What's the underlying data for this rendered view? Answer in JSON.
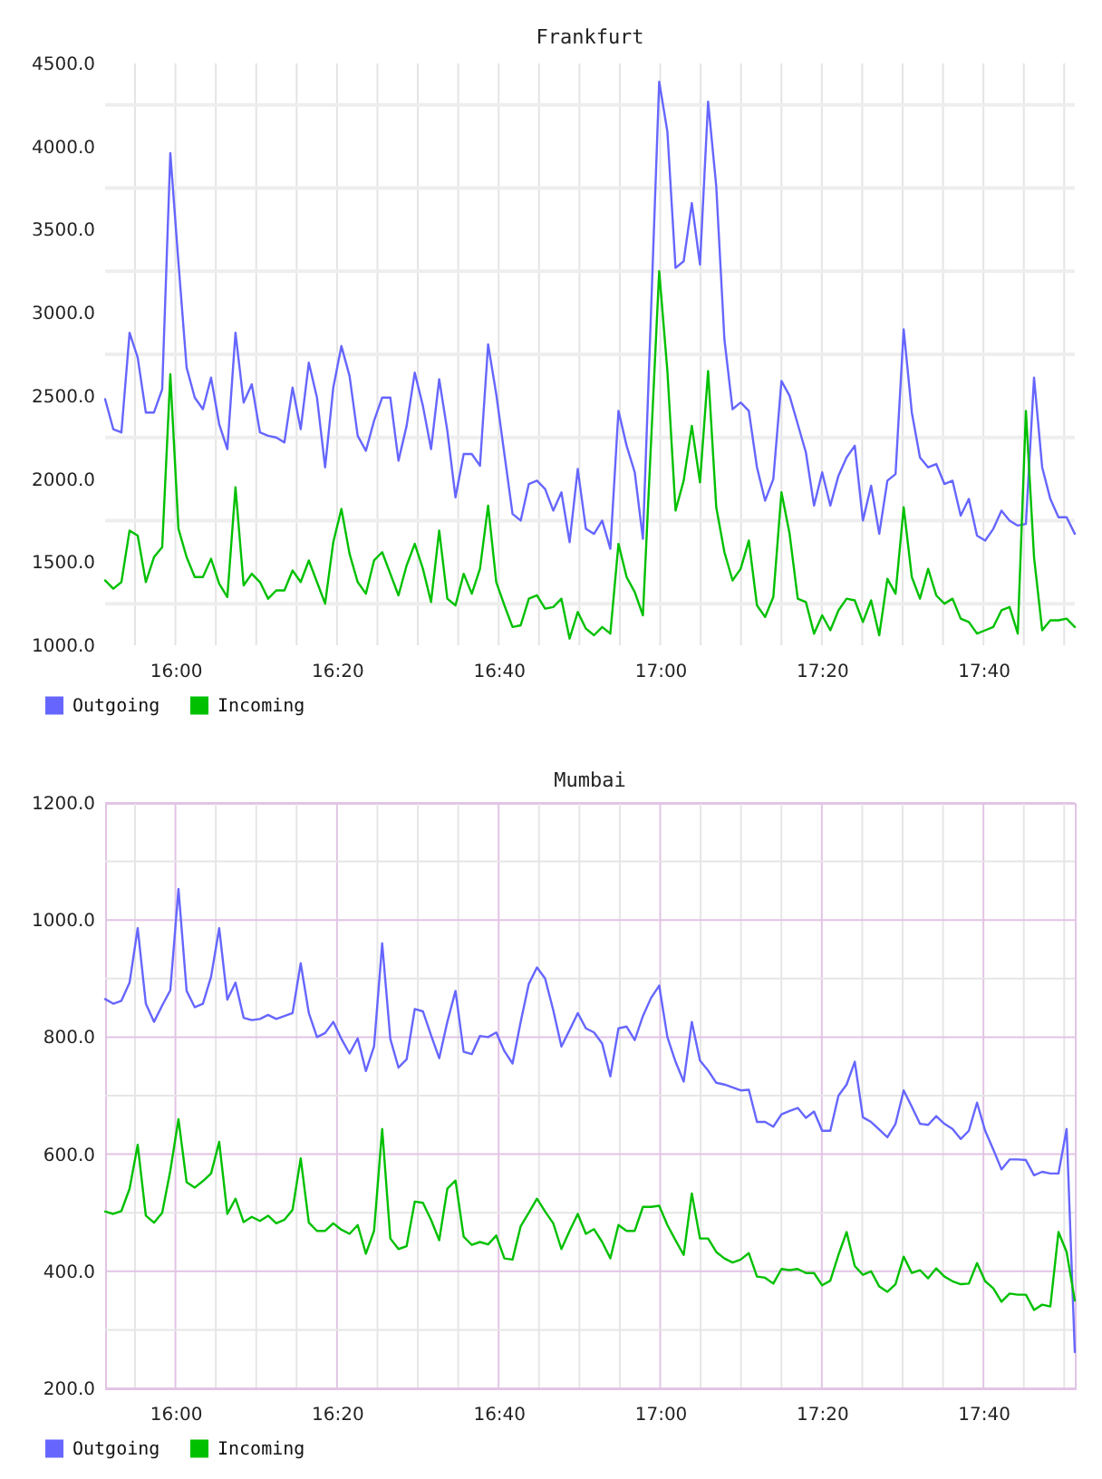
{
  "chart_data": [
    {
      "type": "line",
      "title": "Frankfurt",
      "x": [
        15.855,
        15.8718,
        15.8886,
        15.9054,
        15.9222,
        15.939,
        15.9558,
        15.9727,
        15.9895,
        16.0063,
        16.0231,
        16.0399,
        16.0567,
        16.0735,
        16.0903,
        16.1071,
        16.1239,
        16.1407,
        16.1575,
        16.1744,
        16.1912,
        16.208,
        16.2248,
        16.2416,
        16.2584,
        16.2752,
        16.292,
        16.3088,
        16.3256,
        16.3424,
        16.3592,
        16.376,
        16.3929,
        16.4097,
        16.4265,
        16.4433,
        16.4601,
        16.4769,
        16.4937,
        16.5105,
        16.5273,
        16.5441,
        16.5609,
        16.5777,
        16.5946,
        16.6114,
        16.6282,
        16.645,
        16.6618,
        16.6786,
        16.6954,
        16.7122,
        16.729,
        16.7458,
        16.7626,
        16.7794,
        16.7962,
        16.8131,
        16.8299,
        16.8467,
        16.8635,
        16.8803,
        16.8971,
        16.9139,
        16.9307,
        16.9475,
        16.9643,
        16.9811,
        16.9979,
        17.0148,
        17.0316,
        17.0484,
        17.0652,
        17.082,
        17.0988,
        17.1156,
        17.1324,
        17.1492,
        17.166,
        17.1828,
        17.1996,
        17.2164,
        17.2333,
        17.2501,
        17.2669,
        17.2837,
        17.3005,
        17.3173,
        17.3341,
        17.3509,
        17.3677,
        17.3845,
        17.4013,
        17.4181,
        17.435,
        17.4518,
        17.4686,
        17.4854,
        17.5022,
        17.519,
        17.5358,
        17.5526,
        17.5694,
        17.5862,
        17.603,
        17.6198,
        17.6366,
        17.6535,
        17.6703,
        17.6871,
        17.7039,
        17.7207,
        17.7375,
        17.7543,
        17.7711,
        17.7879,
        17.8047,
        17.8215,
        17.8383,
        17.8552
      ],
      "series": [
        {
          "name": "Outgoing",
          "color": "#6666ff",
          "values": [
            2480,
            2300,
            2280,
            2880,
            2730,
            2400,
            2400,
            2540,
            3960,
            3300,
            2670,
            2490,
            2420,
            2610,
            2330,
            2180,
            2880,
            2460,
            2570,
            2280,
            2260,
            2250,
            2220,
            2550,
            2300,
            2700,
            2490,
            2070,
            2550,
            2800,
            2620,
            2260,
            2170,
            2350,
            2490,
            2490,
            2110,
            2320,
            2640,
            2440,
            2180,
            2600,
            2290,
            1890,
            2150,
            2150,
            2080,
            2810,
            2510,
            2150,
            1790,
            1750,
            1970,
            1990,
            1940,
            1810,
            1920,
            1620,
            2060,
            1700,
            1670,
            1750,
            1580,
            2410,
            2200,
            2040,
            1640,
            3010,
            4390,
            4090,
            3270,
            3310,
            3660,
            3290,
            4270,
            3760,
            2840,
            2420,
            2460,
            2410,
            2070,
            1870,
            2000,
            2590,
            2500,
            2330,
            2160,
            1840,
            2040,
            1840,
            2020,
            2130,
            2200,
            1750,
            1960,
            1670,
            1990,
            2030,
            2900,
            2400,
            2130,
            2070,
            2090,
            1970,
            1990,
            1780,
            1880,
            1660,
            1630,
            1700,
            1810,
            1750,
            1720,
            1730,
            2610,
            2070,
            1880,
            1770,
            1770,
            1670
          ]
        },
        {
          "name": "Incoming",
          "color": "#00c000",
          "values": [
            1390,
            1340,
            1380,
            1690,
            1660,
            1380,
            1530,
            1590,
            2630,
            1700,
            1530,
            1410,
            1410,
            1520,
            1370,
            1290,
            1950,
            1360,
            1430,
            1380,
            1280,
            1330,
            1330,
            1450,
            1380,
            1510,
            1380,
            1250,
            1620,
            1820,
            1550,
            1380,
            1310,
            1510,
            1560,
            1430,
            1300,
            1480,
            1610,
            1460,
            1260,
            1690,
            1280,
            1240,
            1430,
            1310,
            1460,
            1840,
            1380,
            1240,
            1110,
            1120,
            1280,
            1300,
            1220,
            1230,
            1280,
            1040,
            1200,
            1100,
            1060,
            1110,
            1070,
            1610,
            1410,
            1320,
            1180,
            2220,
            3250,
            2650,
            1810,
            1990,
            2320,
            1980,
            2650,
            1830,
            1560,
            1390,
            1460,
            1630,
            1240,
            1170,
            1290,
            1920,
            1670,
            1280,
            1260,
            1070,
            1180,
            1090,
            1210,
            1280,
            1270,
            1140,
            1270,
            1060,
            1400,
            1310,
            1830,
            1410,
            1280,
            1460,
            1300,
            1250,
            1280,
            1160,
            1140,
            1070,
            1090,
            1110,
            1210,
            1230,
            1070,
            2410,
            1530,
            1090,
            1150,
            1150,
            1160,
            1110
          ]
        }
      ],
      "xlim": [
        15.855,
        17.8552
      ],
      "xticks": [
        {
          "value": 15.9167,
          "label": null
        },
        {
          "value": 16,
          "label": "16:00"
        },
        {
          "value": 16.0833,
          "label": null
        },
        {
          "value": 16.1667,
          "label": null
        },
        {
          "value": 16.25,
          "label": null
        },
        {
          "value": 16.3333,
          "label": "16:20"
        },
        {
          "value": 16.4167,
          "label": null
        },
        {
          "value": 16.5,
          "label": null
        },
        {
          "value": 16.5833,
          "label": null
        },
        {
          "value": 16.6667,
          "label": "16:40"
        },
        {
          "value": 16.75,
          "label": null
        },
        {
          "value": 16.8333,
          "label": null
        },
        {
          "value": 16.9167,
          "label": null
        },
        {
          "value": 17,
          "label": "17:00"
        },
        {
          "value": 17.0833,
          "label": null
        },
        {
          "value": 17.1667,
          "label": null
        },
        {
          "value": 17.25,
          "label": null
        },
        {
          "value": 17.3333,
          "label": "17:20"
        },
        {
          "value": 17.4167,
          "label": null
        },
        {
          "value": 17.5,
          "label": null
        },
        {
          "value": 17.5833,
          "label": null
        },
        {
          "value": 17.6667,
          "label": "17:40"
        },
        {
          "value": 17.75,
          "label": null
        },
        {
          "value": 17.8333,
          "label": null
        }
      ],
      "ylim": [
        1000,
        4500
      ],
      "yticks": [
        {
          "value": 1000,
          "label": "1000.0"
        },
        {
          "value": 1250,
          "label": null
        },
        {
          "value": 1500,
          "label": "1500.0"
        },
        {
          "value": 1750,
          "label": null
        },
        {
          "value": 2000,
          "label": "2000.0"
        },
        {
          "value": 2250,
          "label": null
        },
        {
          "value": 2500,
          "label": "2500.0"
        },
        {
          "value": 2750,
          "label": null
        },
        {
          "value": 3000,
          "label": "3000.0"
        },
        {
          "value": 3250,
          "label": null
        },
        {
          "value": 3500,
          "label": "3500.0"
        },
        {
          "value": 3750,
          "label": null
        },
        {
          "value": 4000,
          "label": "4000.0"
        },
        {
          "value": 4250,
          "label": null
        },
        {
          "value": 4500,
          "label": "4500.0"
        }
      ],
      "grid": true,
      "line_style": "solid",
      "legend": "bottom"
    },
    {
      "type": "line",
      "title": "Mumbai",
      "x": [
        15.855,
        15.8718,
        15.8886,
        15.9054,
        15.9222,
        15.939,
        15.9558,
        15.9727,
        15.9895,
        16.0063,
        16.0231,
        16.0399,
        16.0567,
        16.0735,
        16.0903,
        16.1071,
        16.1239,
        16.1407,
        16.1575,
        16.1744,
        16.1912,
        16.208,
        16.2248,
        16.2416,
        16.2584,
        16.2752,
        16.292,
        16.3088,
        16.3256,
        16.3424,
        16.3592,
        16.376,
        16.3929,
        16.4097,
        16.4265,
        16.4433,
        16.4601,
        16.4769,
        16.4937,
        16.5105,
        16.5273,
        16.5441,
        16.5609,
        16.5777,
        16.5946,
        16.6114,
        16.6282,
        16.645,
        16.6618,
        16.6786,
        16.6954,
        16.7122,
        16.729,
        16.7458,
        16.7626,
        16.7794,
        16.7962,
        16.8131,
        16.8299,
        16.8467,
        16.8635,
        16.8803,
        16.8971,
        16.9139,
        16.9307,
        16.9475,
        16.9643,
        16.9811,
        16.9979,
        17.0148,
        17.0316,
        17.0484,
        17.0652,
        17.082,
        17.0988,
        17.1156,
        17.1324,
        17.1492,
        17.166,
        17.1828,
        17.1996,
        17.2164,
        17.2333,
        17.2501,
        17.2669,
        17.2837,
        17.3005,
        17.3173,
        17.3341,
        17.3509,
        17.3677,
        17.3845,
        17.4013,
        17.4181,
        17.435,
        17.4518,
        17.4686,
        17.4854,
        17.5022,
        17.519,
        17.5358,
        17.5526,
        17.5694,
        17.5862,
        17.603,
        17.6198,
        17.6366,
        17.6535,
        17.6703,
        17.6871,
        17.7039,
        17.7207,
        17.7375,
        17.7543,
        17.7711,
        17.7879,
        17.8047,
        17.8215,
        17.8383,
        17.8552
      ],
      "series": [
        {
          "name": "Outgoing",
          "color": "#6666ff",
          "values": [
            865,
            857,
            862,
            893,
            986,
            857,
            826,
            854,
            880,
            1053,
            879,
            851,
            857,
            903,
            986,
            864,
            893,
            833,
            829,
            831,
            838,
            831,
            836,
            841,
            926,
            841,
            800,
            807,
            826,
            797,
            772,
            798,
            742,
            784,
            960,
            797,
            748,
            762,
            848,
            844,
            803,
            764,
            826,
            879,
            775,
            771,
            802,
            800,
            808,
            776,
            755,
            826,
            891,
            919,
            900,
            846,
            784,
            812,
            841,
            815,
            808,
            789,
            733,
            815,
            818,
            795,
            836,
            867,
            888,
            800,
            758,
            724,
            826,
            760,
            743,
            722,
            719,
            714,
            709,
            710,
            655,
            655,
            647,
            668,
            674,
            679,
            662,
            673,
            640,
            640,
            700,
            719,
            758,
            663,
            655,
            642,
            629,
            652,
            709,
            681,
            652,
            650,
            665,
            652,
            643,
            626,
            640,
            688,
            640,
            608,
            574,
            591,
            591,
            590,
            564,
            570,
            567,
            567,
            643,
            262
          ]
        },
        {
          "name": "Incoming",
          "color": "#00c000",
          "values": [
            502,
            498,
            503,
            541,
            616,
            495,
            483,
            500,
            572,
            660,
            552,
            543,
            554,
            567,
            621,
            498,
            524,
            484,
            493,
            486,
            495,
            482,
            488,
            505,
            593,
            483,
            469,
            469,
            482,
            471,
            464,
            479,
            430,
            469,
            643,
            456,
            438,
            443,
            519,
            517,
            488,
            453,
            541,
            555,
            459,
            445,
            450,
            446,
            461,
            422,
            420,
            477,
            500,
            524,
            502,
            482,
            438,
            469,
            498,
            464,
            472,
            450,
            422,
            479,
            469,
            469,
            510,
            510,
            512,
            479,
            453,
            428,
            533,
            456,
            456,
            433,
            422,
            415,
            420,
            431,
            391,
            389,
            379,
            404,
            402,
            404,
            397,
            397,
            376,
            384,
            428,
            467,
            409,
            394,
            400,
            374,
            365,
            378,
            425,
            397,
            402,
            388,
            405,
            391,
            383,
            378,
            379,
            414,
            383,
            371,
            348,
            362,
            360,
            360,
            334,
            343,
            340,
            467,
            433,
            350
          ]
        }
      ],
      "xlim": [
        15.855,
        17.8552
      ],
      "xticks": [
        {
          "value": 15.9167,
          "label": null
        },
        {
          "value": 16,
          "label": "16:00"
        },
        {
          "value": 16.0833,
          "label": null
        },
        {
          "value": 16.1667,
          "label": null
        },
        {
          "value": 16.25,
          "label": null
        },
        {
          "value": 16.3333,
          "label": "16:20"
        },
        {
          "value": 16.4167,
          "label": null
        },
        {
          "value": 16.5,
          "label": null
        },
        {
          "value": 16.5833,
          "label": null
        },
        {
          "value": 16.6667,
          "label": "16:40"
        },
        {
          "value": 16.75,
          "label": null
        },
        {
          "value": 16.8333,
          "label": null
        },
        {
          "value": 16.9167,
          "label": null
        },
        {
          "value": 17,
          "label": "17:00"
        },
        {
          "value": 17.0833,
          "label": null
        },
        {
          "value": 17.1667,
          "label": null
        },
        {
          "value": 17.25,
          "label": null
        },
        {
          "value": 17.3333,
          "label": "17:20"
        },
        {
          "value": 17.4167,
          "label": null
        },
        {
          "value": 17.5,
          "label": null
        },
        {
          "value": 17.5833,
          "label": null
        },
        {
          "value": 17.6667,
          "label": "17:40"
        },
        {
          "value": 17.75,
          "label": null
        },
        {
          "value": 17.8333,
          "label": null
        }
      ],
      "ylim": [
        200,
        1200
      ],
      "yticks": [
        {
          "value": 200,
          "label": "200.0"
        },
        {
          "value": 300,
          "label": null
        },
        {
          "value": 400,
          "label": "400.0"
        },
        {
          "value": 500,
          "label": null
        },
        {
          "value": 600,
          "label": "600.0"
        },
        {
          "value": 700,
          "label": null
        },
        {
          "value": 800,
          "label": "800.0"
        },
        {
          "value": 900,
          "label": null
        },
        {
          "value": 1000,
          "label": "1000.0"
        },
        {
          "value": 1100,
          "label": null
        },
        {
          "value": 1200,
          "label": "1200.0"
        }
      ],
      "grid": true,
      "line_style": "solid",
      "legend": "bottom"
    }
  ]
}
